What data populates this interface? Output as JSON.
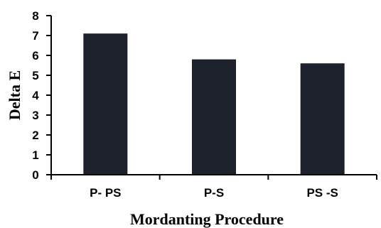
{
  "chart_data": {
    "type": "bar",
    "categories": [
      "P- PS",
      "P-S",
      "PS -S"
    ],
    "values": [
      7.1,
      5.8,
      5.6
    ],
    "title": "",
    "xlabel": "Mordanting Procedure",
    "ylabel": "Delta E",
    "ylim": [
      0,
      8
    ],
    "yticks": [
      0,
      1,
      2,
      3,
      4,
      5,
      6,
      7,
      8
    ],
    "grid": false,
    "legend": "none",
    "bar_color": "#1c212b",
    "axis_color": "#000000"
  }
}
